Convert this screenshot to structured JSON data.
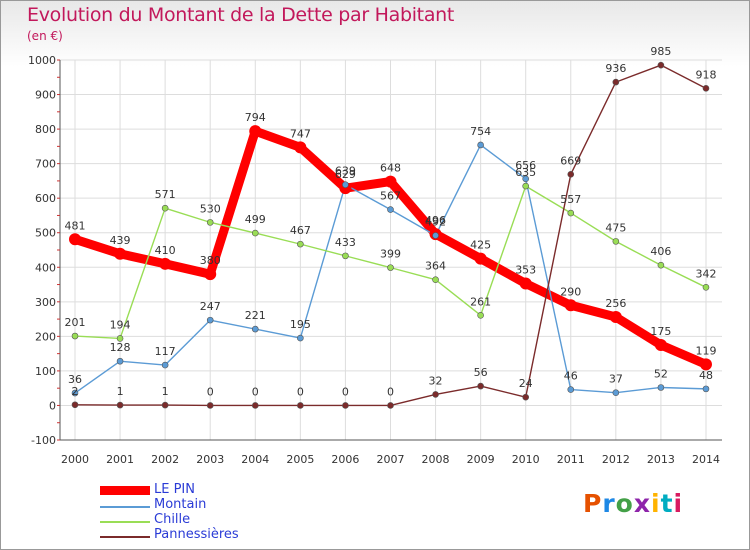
{
  "title": "Evolution du Montant de la Dette par Habitant",
  "subtitle": "(en €)",
  "logo": {
    "text": "Proxiti",
    "colors": [
      "#e65100",
      "#1e88e5",
      "#43a047",
      "#8e24aa",
      "#ffb300",
      "#00acc1",
      "#d81b60"
    ]
  },
  "chart_data": {
    "type": "line",
    "x": [
      "2000",
      "2001",
      "2002",
      "2003",
      "2004",
      "2005",
      "2006",
      "2007",
      "2008",
      "2009",
      "2010",
      "2011",
      "2012",
      "2013",
      "2014"
    ],
    "ylim": [
      -100,
      1000
    ],
    "yticks": [
      "-100",
      "0",
      "100",
      "200",
      "300",
      "400",
      "500",
      "600",
      "700",
      "800",
      "900",
      "1000"
    ],
    "grid": true,
    "legend_position": "bottom-left",
    "series": [
      {
        "name": "LE PIN",
        "color": "#ff0000",
        "values": [
          481,
          439,
          410,
          380,
          794,
          747,
          629,
          648,
          496,
          425,
          353,
          290,
          256,
          175,
          119
        ],
        "labels": [
          "481",
          "439",
          "410",
          "380",
          "794",
          "747",
          "629",
          "648",
          "496",
          "425",
          "353",
          "290",
          "256",
          "175",
          "119"
        ]
      },
      {
        "name": "Montain",
        "color": "#5b9bd5",
        "values": [
          36,
          128,
          117,
          247,
          221,
          195,
          639,
          567,
          492,
          754,
          656,
          46,
          37,
          52,
          48
        ],
        "labels": [
          "36",
          "128",
          "117",
          "247",
          "221",
          "195",
          "639",
          "567",
          "492",
          "754",
          "656",
          "46",
          "37",
          "52",
          "48"
        ]
      },
      {
        "name": "Chille",
        "color": "#99dd55",
        "values": [
          201,
          194,
          571,
          530,
          499,
          467,
          433,
          399,
          364,
          261,
          635,
          557,
          475,
          406,
          342
        ],
        "labels": [
          "201",
          "194",
          "571",
          "530",
          "499",
          "467",
          "433",
          "399",
          "364",
          "261",
          "635",
          "557",
          "475",
          "406",
          "342"
        ]
      },
      {
        "name": "Pannessières",
        "color": "#7b2b2b",
        "values": [
          2,
          1,
          1,
          0,
          0,
          0,
          0,
          0,
          32,
          56,
          24,
          669,
          936,
          985,
          918
        ],
        "labels": [
          "2",
          "1",
          "1",
          "0",
          "0",
          "0",
          "0",
          "0",
          "32",
          "56",
          "24",
          "669",
          "936",
          "985",
          "918"
        ]
      }
    ]
  }
}
